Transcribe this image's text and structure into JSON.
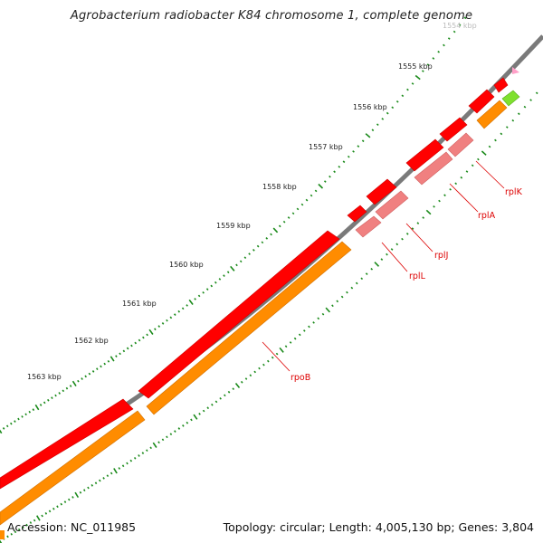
{
  "title": "Agrobacterium radiobacter K84 chromosome 1, complete genome",
  "footer": {
    "accession": "Accession: NC_011985",
    "stats": "Topology: circular; Length: 4,005,130 bp; Genes: 3,804"
  },
  "colors": {
    "backbone": "#7a7a7a",
    "gene": "#ff0000",
    "cds": "#ff8c00",
    "rrna_like": "#f08080",
    "other": "#7fe02f",
    "pink": "#ffa0c8",
    "tick": "#1a8a1a",
    "label": "#dd0000"
  },
  "ticks": [
    {
      "label": "1554 kbp",
      "faded": true
    },
    {
      "label": "1555 kbp",
      "faded": false
    },
    {
      "label": "1556 kbp",
      "faded": false
    },
    {
      "label": "1557 kbp",
      "faded": false
    },
    {
      "label": "1558 kbp",
      "faded": false
    },
    {
      "label": "1559 kbp",
      "faded": false
    },
    {
      "label": "1560 kbp",
      "faded": false
    },
    {
      "label": "1561 kbp",
      "faded": false
    },
    {
      "label": "1562 kbp",
      "faded": false
    },
    {
      "label": "1563 kbp",
      "faded": false
    }
  ],
  "gene_labels": [
    {
      "name": "rplK"
    },
    {
      "name": "rplA"
    },
    {
      "name": "rplJ"
    },
    {
      "name": "rplL"
    },
    {
      "name": "rpoB"
    }
  ]
}
